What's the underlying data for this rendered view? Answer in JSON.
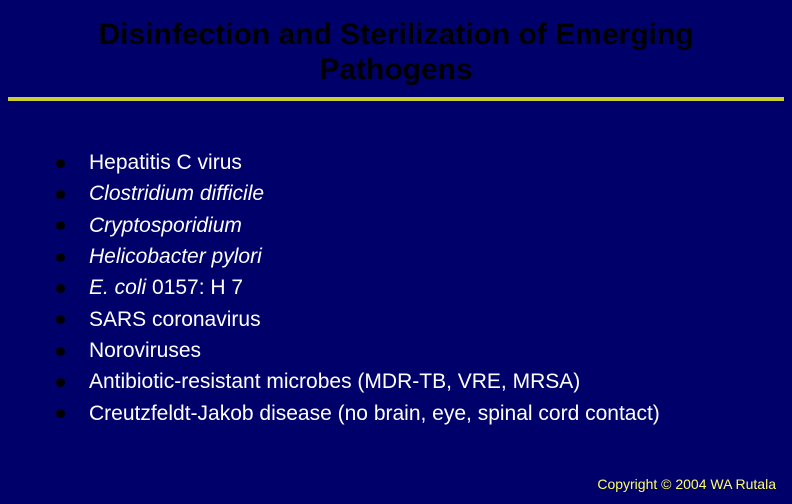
{
  "colors": {
    "background": "#00006b",
    "title_text": "#000000",
    "divider": "#cccc33",
    "bullet_dot": "#000000",
    "body_text": "#ffffff",
    "copyright_text": "#ffff66"
  },
  "typography": {
    "title_fontsize": 30,
    "title_weight": "bold",
    "body_fontsize": 21,
    "copyright_fontsize": 14
  },
  "title": "Disinfection and Sterilization of Emerging Pathogens",
  "bullets": [
    {
      "text": "Hepatitis C virus",
      "italic": false
    },
    {
      "text": "Clostridium difficile",
      "italic": true
    },
    {
      "text": "Cryptosporidium",
      "italic": true
    },
    {
      "text": "Helicobacter pylori",
      "italic": true
    },
    {
      "text": "E. coli 0157: H 7",
      "italic_prefix": "E. coli",
      "suffix": " 0157: H 7"
    },
    {
      "text": "SARS coronavirus",
      "italic": false
    },
    {
      "text": "Noroviruses",
      "italic": false
    },
    {
      "text": "Antibiotic-resistant microbes (MDR-TB, VRE, MRSA)",
      "italic": false
    },
    {
      "text": "Creutzfeldt-Jakob disease (no brain, eye, spinal cord contact)",
      "italic": false
    }
  ],
  "copyright": "Copyright © 2004 WA Rutala"
}
